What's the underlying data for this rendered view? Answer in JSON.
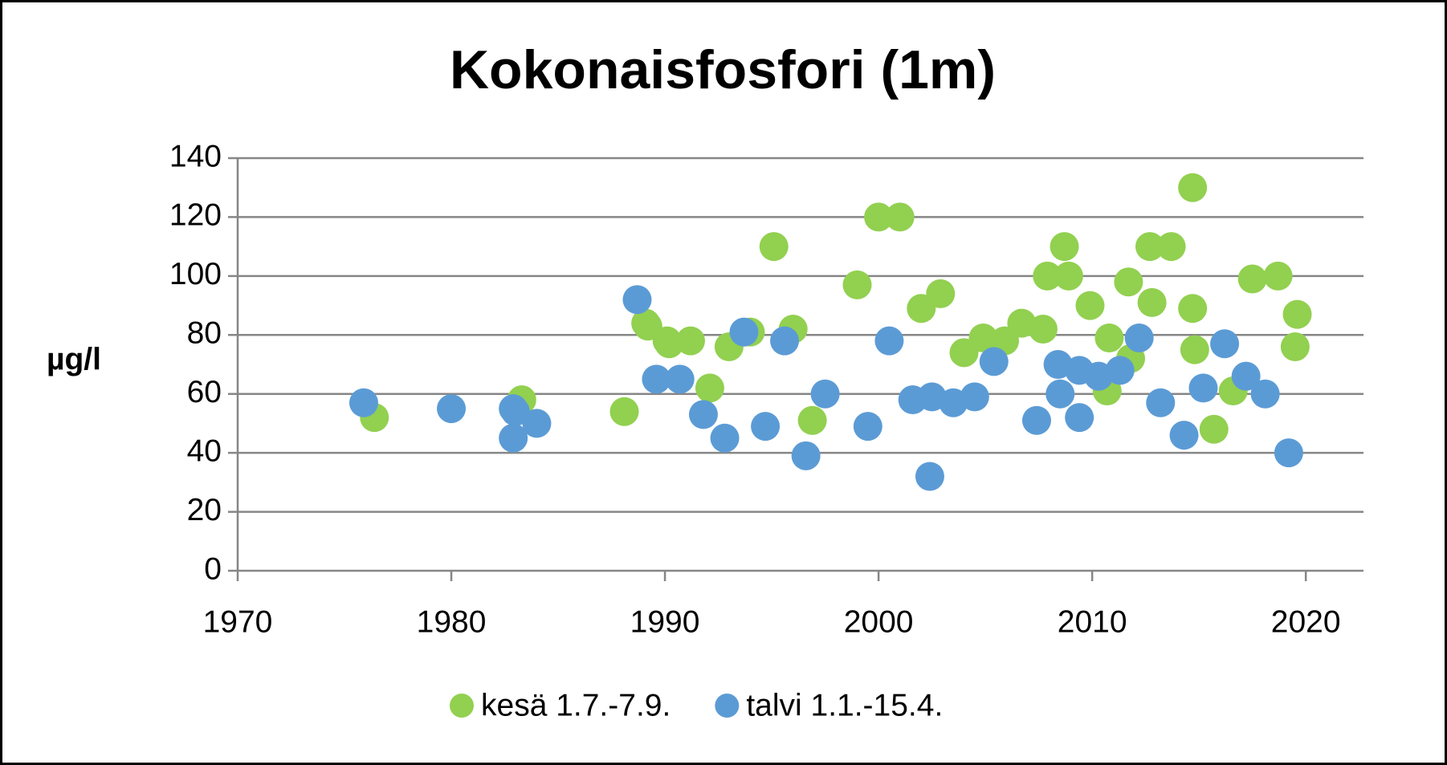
{
  "chart_data": {
    "type": "scatter",
    "title": "Kokonaisfosfori (1m)",
    "y_label": "µg/l",
    "xlim": [
      1970,
      2022.7
    ],
    "xticks": [
      1970,
      1980,
      1990,
      2000,
      2010,
      2020
    ],
    "ylim": [
      0,
      140
    ],
    "yticks": [
      0,
      20,
      40,
      60,
      80,
      100,
      120,
      140
    ],
    "grid": true,
    "legend": "bottom",
    "series": [
      {
        "name": "kesä 1.7.-7.9.",
        "color": "#92d050",
        "x": [
          1976.4,
          1983.3,
          1988.1,
          1989.1,
          1989.2,
          1990.1,
          1990.2,
          1991.2,
          1992.1,
          1993.0,
          1994.0,
          1995.1,
          1996.0,
          1996.9,
          1999.0,
          2000.0,
          2001.0,
          2002.0,
          2002.9,
          2004.0,
          2004.9,
          2005.9,
          2006.7,
          2007.7,
          2007.9,
          2008.7,
          2008.9,
          2009.9,
          2010.7,
          2010.8,
          2011.7,
          2011.8,
          2012.7,
          2012.8,
          2013.7,
          2014.7,
          2014.7,
          2014.8,
          2015.7,
          2016.6,
          2017.5,
          2018.7,
          2019.6,
          2019.5
        ],
        "values": [
          52,
          58,
          54,
          84,
          83,
          78,
          77,
          78,
          62,
          76,
          81,
          110,
          82,
          51,
          97,
          120,
          120,
          89,
          94,
          74,
          79,
          78,
          84,
          82,
          100,
          110,
          100,
          90,
          61,
          79,
          98,
          72,
          110,
          91,
          110,
          130,
          89,
          75,
          48,
          61,
          99,
          100,
          87,
          76
        ]
      },
      {
        "name": "talvi 1.1.-15.4.",
        "color": "#5b9bd5",
        "x": [
          1975.9,
          1980.0,
          1982.9,
          1982.9,
          1983.0,
          1984.0,
          1988.7,
          1989.6,
          1990.7,
          1991.8,
          1992.8,
          1993.7,
          1994.7,
          1995.6,
          1996.6,
          1997.5,
          1999.5,
          2000.5,
          2001.6,
          2002.4,
          2002.5,
          2003.5,
          2004.5,
          2005.4,
          2007.4,
          2008.4,
          2008.5,
          2009.4,
          2009.4,
          2010.3,
          2011.3,
          2012.2,
          2013.2,
          2014.3,
          2015.2,
          2016.2,
          2017.2,
          2018.1,
          2019.2
        ],
        "values": [
          57,
          55,
          55,
          45,
          54,
          50,
          92,
          65,
          65,
          53,
          45,
          81,
          49,
          78,
          39,
          60,
          49,
          78,
          58,
          32,
          59,
          57,
          59,
          71,
          51,
          70,
          60,
          52,
          68,
          66,
          68,
          79,
          57,
          46,
          62,
          77,
          66,
          60,
          40
        ]
      }
    ]
  }
}
